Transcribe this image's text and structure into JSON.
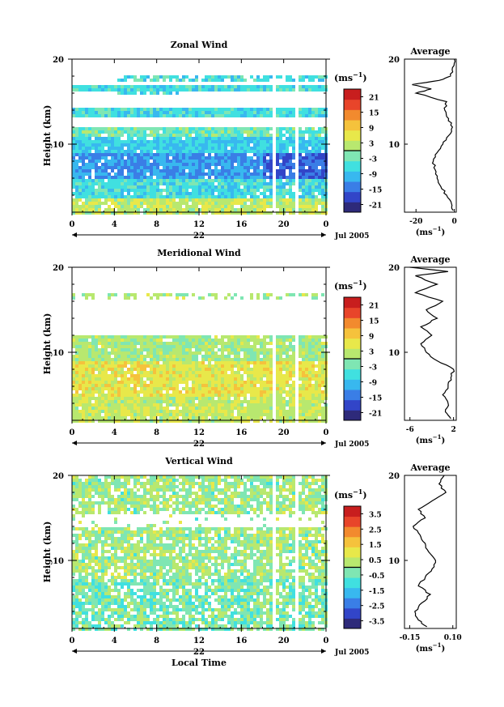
{
  "footer_label": "Local Time",
  "panels": [
    {
      "title": "Zonal Wind",
      "ylabel": "Height (km)",
      "date_label": "22",
      "month_label": "Jul 2005",
      "colorbar_unit": "(ms",
      "colorbar_unit_sup": "−1",
      "colorbar_unit_close": ")",
      "colorbar_ticks": [
        "21",
        "15",
        "9",
        "3",
        "-3",
        "-9",
        "-15",
        "-21"
      ],
      "avg_title": "Average",
      "avg_xticks": [
        "-20",
        "0"
      ],
      "avg_unit": "(ms",
      "avg_unit_sup": "−1",
      "avg_unit_close": ")"
    },
    {
      "title": "Meridional Wind",
      "ylabel": "Height (km)",
      "date_label": "22",
      "month_label": "Jul 2005",
      "colorbar_unit": "(ms",
      "colorbar_unit_sup": "−1",
      "colorbar_unit_close": ")",
      "colorbar_ticks": [
        "21",
        "15",
        "9",
        "3",
        "-3",
        "-9",
        "-15",
        "-21"
      ],
      "avg_title": "Average",
      "avg_xticks": [
        "-6",
        "2"
      ],
      "avg_unit": "(ms",
      "avg_unit_sup": "−1",
      "avg_unit_close": ")"
    },
    {
      "title": "Vertical Wind",
      "ylabel": "Height (km)",
      "date_label": "22",
      "month_label": "Jul 2005",
      "colorbar_unit": "(ms",
      "colorbar_unit_sup": "−1",
      "colorbar_unit_close": ")",
      "colorbar_ticks": [
        "3.5",
        "2.5",
        "1.5",
        "0.5",
        "-0.5",
        "-1.5",
        "-2.5",
        "-3.5"
      ],
      "avg_title": "Average",
      "avg_xticks": [
        "-0.15",
        "0.10"
      ],
      "avg_unit": "(ms",
      "avg_unit_sup": "−1",
      "avg_unit_close": ")"
    }
  ],
  "chart_data": [
    {
      "type": "heatmap",
      "title": "Zonal Wind",
      "ylabel": "Height (km)",
      "xlabel": "",
      "xticks": [
        "0",
        "4",
        "8",
        "12",
        "16",
        "20",
        "0"
      ],
      "yticks": [
        "10",
        "20"
      ],
      "xlim": [
        0,
        24
      ],
      "ylim": [
        2,
        20
      ],
      "colorbar": {
        "unit": "(ms−1)",
        "ticks": [
          21,
          15,
          9,
          3,
          -3,
          -9,
          -15,
          -21
        ],
        "range": [
          -24,
          24
        ]
      },
      "data_gaps_local_time": [
        18.9,
        21.1
      ],
      "profile": [
        {
          "h": 2.2,
          "v": -0.5
        },
        {
          "h": 3,
          "v": -1.5
        },
        {
          "h": 4,
          "v": -4
        },
        {
          "h": 5,
          "v": -7
        },
        {
          "h": 6,
          "v": -9
        },
        {
          "h": 7,
          "v": -10
        },
        {
          "h": 8,
          "v": -11
        },
        {
          "h": 9,
          "v": -9
        },
        {
          "h": 10,
          "v": -6
        },
        {
          "h": 11,
          "v": -3
        },
        {
          "h": 12,
          "v": -1
        },
        {
          "h": 13,
          "v": -3
        },
        {
          "h": 14,
          "v": -5
        },
        {
          "h": 15,
          "v": -4
        },
        {
          "h": 16,
          "v": -20
        },
        {
          "h": 16.5,
          "v": -12
        },
        {
          "h": 17,
          "v": -22
        },
        {
          "h": 17.5,
          "v": -8
        },
        {
          "h": 18,
          "v": -2
        },
        {
          "h": 19,
          "v": -1
        },
        {
          "h": 20,
          "v": 0
        }
      ]
    },
    {
      "type": "heatmap",
      "title": "Meridional Wind",
      "ylabel": "Height (km)",
      "xlabel": "",
      "xticks": [
        "0",
        "4",
        "8",
        "12",
        "16",
        "20",
        "0"
      ],
      "yticks": [
        "10",
        "20"
      ],
      "xlim": [
        0,
        24
      ],
      "ylim": [
        2,
        20
      ],
      "colorbar": {
        "unit": "(ms−1)",
        "ticks": [
          21,
          15,
          9,
          3,
          -3,
          -9,
          -15,
          -21
        ],
        "range": [
          -24,
          24
        ]
      },
      "data_gaps_local_time": [
        18.9,
        21.1
      ],
      "profile": [
        {
          "h": 2.2,
          "v": 1.5
        },
        {
          "h": 3,
          "v": 0.5
        },
        {
          "h": 4,
          "v": 1
        },
        {
          "h": 5,
          "v": 0
        },
        {
          "h": 6,
          "v": 1
        },
        {
          "h": 7,
          "v": 1.5
        },
        {
          "h": 8,
          "v": 2
        },
        {
          "h": 9,
          "v": -1
        },
        {
          "h": 10,
          "v": -3
        },
        {
          "h": 11,
          "v": -4
        },
        {
          "h": 12,
          "v": -2
        },
        {
          "h": 13,
          "v": -4
        },
        {
          "h": 14,
          "v": -1
        },
        {
          "h": 15,
          "v": -3
        },
        {
          "h": 16,
          "v": 0
        },
        {
          "h": 17,
          "v": -5
        },
        {
          "h": 18,
          "v": -1
        },
        {
          "h": 19,
          "v": -5
        },
        {
          "h": 19.5,
          "v": 1
        },
        {
          "h": 20,
          "v": -6
        }
      ]
    },
    {
      "type": "heatmap",
      "title": "Vertical Wind",
      "ylabel": "Height (km)",
      "xlabel": "Local Time",
      "xticks": [
        "0",
        "4",
        "8",
        "12",
        "16",
        "20",
        "0"
      ],
      "yticks": [
        "10",
        "20"
      ],
      "xlim": [
        0,
        24
      ],
      "ylim": [
        2,
        20
      ],
      "colorbar": {
        "unit": "(ms−1)",
        "ticks": [
          3.5,
          2.5,
          1.5,
          0.5,
          -0.5,
          -1.5,
          -2.5,
          -3.5
        ],
        "range": [
          -4,
          4
        ]
      },
      "data_gaps_local_time": [
        18.9,
        21.1
      ],
      "profile": [
        {
          "h": 2.2,
          "v": -0.05
        },
        {
          "h": 3,
          "v": -0.1
        },
        {
          "h": 4,
          "v": -0.12
        },
        {
          "h": 5,
          "v": -0.08
        },
        {
          "h": 6,
          "v": -0.03
        },
        {
          "h": 7,
          "v": -0.1
        },
        {
          "h": 8,
          "v": -0.06
        },
        {
          "h": 9,
          "v": -0.02
        },
        {
          "h": 10,
          "v": 0
        },
        {
          "h": 11,
          "v": -0.04
        },
        {
          "h": 12,
          "v": -0.06
        },
        {
          "h": 13,
          "v": -0.09
        },
        {
          "h": 14,
          "v": -0.13
        },
        {
          "h": 15,
          "v": -0.06
        },
        {
          "h": 16,
          "v": -0.1
        },
        {
          "h": 17,
          "v": -0.02
        },
        {
          "h": 18,
          "v": 0.06
        },
        {
          "h": 19,
          "v": 0.02
        },
        {
          "h": 20,
          "v": 0.05
        }
      ]
    }
  ],
  "colors": {
    "scale": [
      "#2e2a7a",
      "#3245c8",
      "#3a7ee6",
      "#38b8ef",
      "#40e0e0",
      "#7fe6b3",
      "#b8e86f",
      "#e8e84a",
      "#f5c23c",
      "#f28a2e",
      "#e8452a",
      "#c81e1e"
    ]
  }
}
